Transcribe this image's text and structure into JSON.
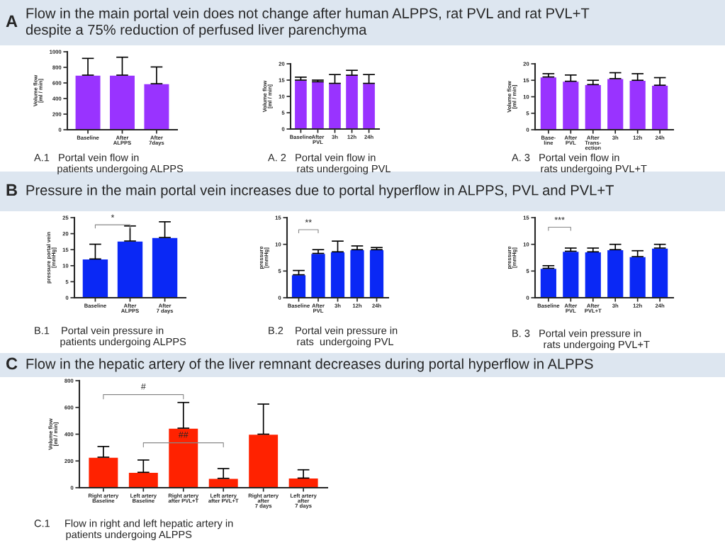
{
  "chart_data": [
    {
      "type": "bar",
      "title": "Flow in the main portal vein does not change after human ALPPS, rat PVL and rat PVL+T\ndespite a 75% reduction of perfused liver parenchyma",
      "ylabel": "Volume flow\n[ml / min]",
      "categories": [
        "Baseline",
        "After\nALPPS",
        "After\n7days"
      ],
      "values": [
        700,
        700,
        590
      ],
      "errors": [
        [
          700,
          915
        ],
        [
          700,
          930
        ],
        [
          590,
          805
        ]
      ],
      "color": "#9933ff",
      "ylim": [
        0,
        1000
      ],
      "yticks": [
        0,
        200,
        400,
        600,
        800,
        1000
      ],
      "annotations": [
        "A",
        "A.1   Portal vein flow in\n        patients undergoing ALPPS"
      ]
    },
    {
      "type": "bar",
      "ylabel": "Volume flow\n[ml / min]",
      "categories": [
        "Baseline",
        "After\nPVL",
        "3h",
        "12h",
        "24h"
      ],
      "values": [
        15,
        14.5,
        14,
        16.5,
        14
      ],
      "errors": [
        [
          15,
          15.9
        ],
        [
          14.5,
          15
        ],
        [
          14,
          16.7
        ],
        [
          16.5,
          18
        ],
        [
          14,
          16.7
        ]
      ],
      "color": "#9933ff",
      "ylim": [
        0,
        20
      ],
      "yticks": [
        0,
        5,
        10,
        15,
        20
      ],
      "annotations": [
        "A. 2   Portal vein flow in\n          rats undergoing PVL"
      ]
    },
    {
      "type": "bar",
      "ylabel": "Volume flow\n[ml / min]",
      "categories": [
        "Base-\nline",
        "After\nPVL",
        "After\nTrans-\nection",
        "3h",
        "12h",
        "24h"
      ],
      "values": [
        16,
        14.7,
        13.7,
        15.5,
        15,
        13.5
      ],
      "errors": [
        [
          16,
          17
        ],
        [
          14.7,
          16.6
        ],
        [
          13.7,
          15
        ],
        [
          15.5,
          17.3
        ],
        [
          15,
          17
        ],
        [
          13.5,
          15.8
        ]
      ],
      "color": "#9933ff",
      "ylim": [
        0,
        20
      ],
      "yticks": [
        0,
        5,
        10,
        15,
        20
      ],
      "annotations": [
        "A. 3   Portal vein flow in\n          rats undergoing PVL+T"
      ]
    },
    {
      "type": "bar",
      "title": "Pressure in the main portal vein increases due to portal hyperflow in ALPPS, PVL and PVL+T",
      "ylabel": "pressure portal vein\n[mmHg]",
      "categories": [
        "Baseline",
        "After\nALPPS",
        "After\n7 days"
      ],
      "values": [
        12.1,
        17.7,
        18.8
      ],
      "errors": [
        [
          12.1,
          16.7
        ],
        [
          17.7,
          22.4
        ],
        [
          18.8,
          23.7
        ]
      ],
      "color": "#0a28f5",
      "ylim": [
        0,
        25
      ],
      "yticks": [
        0,
        5,
        10,
        15,
        20,
        25
      ],
      "annotations": [
        "B",
        "B.1    Portal vein pressure in\n         patients undergoing ALPPS",
        "*"
      ]
    },
    {
      "type": "bar",
      "ylabel": "pressure\n[mmHg]",
      "categories": [
        "Baseline",
        "After\nPVL",
        "3h",
        "12h",
        "24h"
      ],
      "values": [
        4.3,
        8.3,
        8.6,
        9.0,
        9.0
      ],
      "errors": [
        [
          4.3,
          5.1
        ],
        [
          8.3,
          9.0
        ],
        [
          8.6,
          10.6
        ],
        [
          9.0,
          9.7
        ],
        [
          9.0,
          9.4
        ]
      ],
      "color": "#0a28f5",
      "ylim": [
        0,
        15
      ],
      "yticks": [
        0,
        5,
        10,
        15
      ],
      "annotations": [
        "B.2    Portal vein pressure in\n          rats  undergoing PVL",
        "**"
      ]
    },
    {
      "type": "bar",
      "ylabel": "pressure\n[mmHg]",
      "categories": [
        "Baseline",
        "After\nPVL",
        "After\nPVL+T",
        "3h",
        "12h",
        "24h"
      ],
      "values": [
        5.5,
        8.7,
        8.6,
        9.0,
        7.7,
        9.3
      ],
      "errors": [
        [
          5.5,
          6.0
        ],
        [
          8.7,
          9.3
        ],
        [
          8.6,
          9.3
        ],
        [
          9.0,
          10.0
        ],
        [
          7.7,
          8.8
        ],
        [
          9.3,
          10.0
        ]
      ],
      "color": "#0a28f5",
      "ylim": [
        0,
        15
      ],
      "yticks": [
        0,
        5,
        10,
        15
      ],
      "annotations": [
        "B. 3   Portal vein pressure in\n           rats undergoing PVL+T",
        "***"
      ]
    },
    {
      "type": "bar",
      "title": "Flow in the hepatic artery of the liver remnant decreases during portal hyperflow in ALPPS",
      "ylabel": "Volume flow\n[ml / min]",
      "categories": [
        "Right artery\nBaseline",
        "Left artery\nBaseline",
        "Right artery\nafter PVL+T",
        "Left artery\nafter PVL+T",
        "Right artery\nafter\n7 days",
        "Left artery\nafter\n7 days"
      ],
      "values": [
        228,
        115,
        445,
        70,
        400,
        72
      ],
      "errors": [
        [
          228,
          308
        ],
        [
          115,
          207
        ],
        [
          445,
          637
        ],
        [
          70,
          143
        ],
        [
          400,
          625
        ],
        [
          72,
          134
        ]
      ],
      "color": "#ff2200",
      "ylim": [
        0,
        800
      ],
      "yticks": [
        0,
        200,
        400,
        600,
        800
      ],
      "annotations": [
        "C",
        "C.1     Flow in right and left hepatic artery in\n           patients undergoing ALPPS",
        "#",
        "##"
      ]
    }
  ]
}
